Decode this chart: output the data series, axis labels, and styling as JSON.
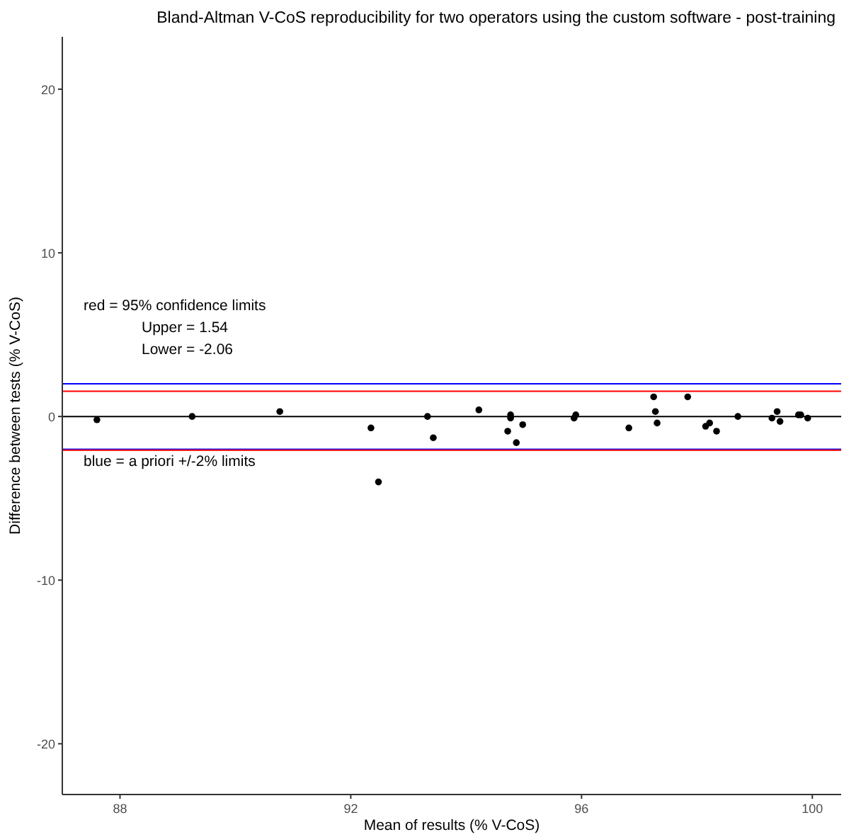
{
  "chart_data": {
    "type": "scatter",
    "title": "Bland-Altman V-CoS reproducibility for two operators using the custom software - post-training",
    "xlabel": "Mean of results (% V-CoS)",
    "ylabel": "Difference between tests (% V-CoS)",
    "x": [
      87.6,
      89.25,
      90.77,
      92.35,
      92.48,
      93.33,
      93.43,
      94.22,
      94.77,
      94.77,
      94.72,
      94.87,
      94.98,
      95.87,
      95.9,
      96.82,
      97.25,
      97.28,
      97.31,
      97.84,
      98.15,
      98.22,
      98.34,
      98.71,
      99.3,
      99.39,
      99.44,
      99.76,
      99.8,
      99.92
    ],
    "series": [
      {
        "color": "#000000",
        "values": [
          -0.2,
          0,
          0.3,
          -0.7,
          -4.0,
          0,
          -1.3,
          0.4,
          0.1,
          -0.1,
          -0.9,
          -1.6,
          -0.5,
          -0.1,
          0.1,
          -0.7,
          1.2,
          0.3,
          -0.4,
          1.2,
          -0.6,
          -0.4,
          -0.9,
          0,
          -0.1,
          0.3,
          -0.3,
          0.1,
          0.1,
          -0.1
        ]
      }
    ],
    "xlim": [
      87,
      100.5
    ],
    "xticks": [
      88,
      92,
      96,
      100
    ],
    "ylim": [
      -23.1,
      23.2
    ],
    "yticks": [
      -20,
      -10,
      0,
      10,
      20
    ],
    "ref_lines": [
      {
        "axis": "y",
        "value": 0,
        "color": "#000000"
      },
      {
        "axis": "y",
        "value": 2,
        "color": "#0000ff"
      },
      {
        "axis": "y",
        "value": -2,
        "color": "#0000ff"
      },
      {
        "axis": "y",
        "value": 1.54,
        "color": "#ff0000"
      },
      {
        "axis": "y",
        "value": -2.06,
        "color": "#ff0000"
      }
    ],
    "annotations": [
      "red = 95% confidence limits",
      "Upper = 1.54",
      "Lower = -2.06",
      "blue = a priori +/-2% limits"
    ],
    "marker": "circle",
    "grid": false
  }
}
